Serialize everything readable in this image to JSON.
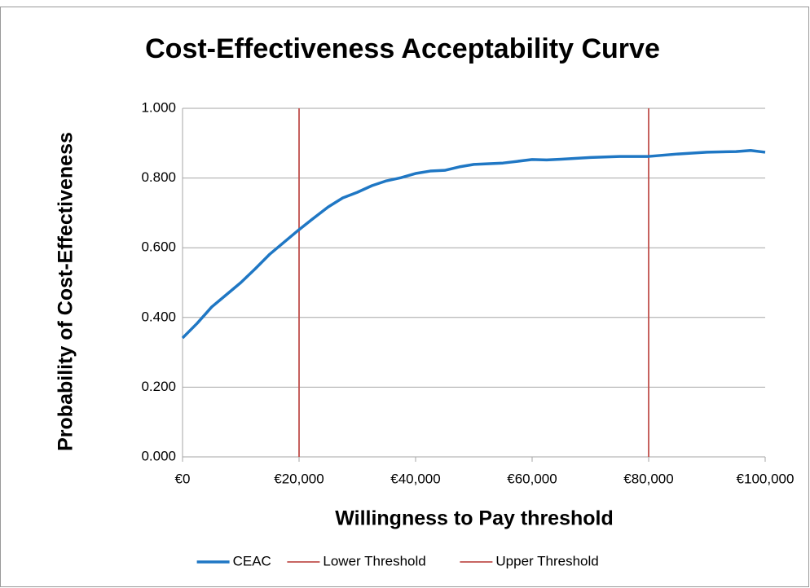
{
  "chart_data": {
    "type": "line",
    "title": "Cost-Effectiveness Acceptability Curve",
    "x_label": "Willingness to Pay threshold",
    "y_label": "Probability of Cost-Effectiveness",
    "xlim": [
      0,
      100000
    ],
    "ylim": [
      0,
      1
    ],
    "xticks": [
      {
        "value": 0,
        "label": "€0"
      },
      {
        "value": 20000,
        "label": "€20,000"
      },
      {
        "value": 40000,
        "label": "€40,000"
      },
      {
        "value": 60000,
        "label": "€60,000"
      },
      {
        "value": 80000,
        "label": "€80,000"
      },
      {
        "value": 100000,
        "label": "€100,000"
      }
    ],
    "yticks": [
      {
        "value": 0,
        "label": "0.000"
      },
      {
        "value": 0.2,
        "label": "0.200"
      },
      {
        "value": 0.4,
        "label": "0.400"
      },
      {
        "value": 0.6,
        "label": "0.600"
      },
      {
        "value": 0.8,
        "label": "0.800"
      },
      {
        "value": 1,
        "label": "1.000"
      }
    ],
    "grid": true,
    "legend": "bottom",
    "series": [
      {
        "name": "CEAC",
        "color": "#1f77c4",
        "x": [
          0,
          2500,
          5000,
          7500,
          10000,
          12500,
          15000,
          17500,
          20000,
          22500,
          25000,
          27500,
          30000,
          32500,
          35000,
          37500,
          40000,
          42500,
          45000,
          47500,
          50000,
          55000,
          60000,
          62500,
          65000,
          70000,
          75000,
          80000,
          85000,
          90000,
          95000,
          97500,
          100000
        ],
        "values": [
          0.341,
          0.383,
          0.43,
          0.465,
          0.5,
          0.54,
          0.582,
          0.617,
          0.652,
          0.685,
          0.717,
          0.743,
          0.759,
          0.778,
          0.792,
          0.801,
          0.813,
          0.82,
          0.822,
          0.832,
          0.839,
          0.843,
          0.853,
          0.852,
          0.854,
          0.859,
          0.862,
          0.862,
          0.869,
          0.874,
          0.876,
          0.879,
          0.874
        ]
      },
      {
        "name": "Lower Threshold",
        "color": "#c0504d",
        "x": [
          20000,
          20000
        ],
        "values": [
          0,
          1
        ]
      },
      {
        "name": "Upper Threshold",
        "color": "#c0504d",
        "x": [
          80000,
          80000
        ],
        "values": [
          0,
          1
        ]
      }
    ]
  }
}
